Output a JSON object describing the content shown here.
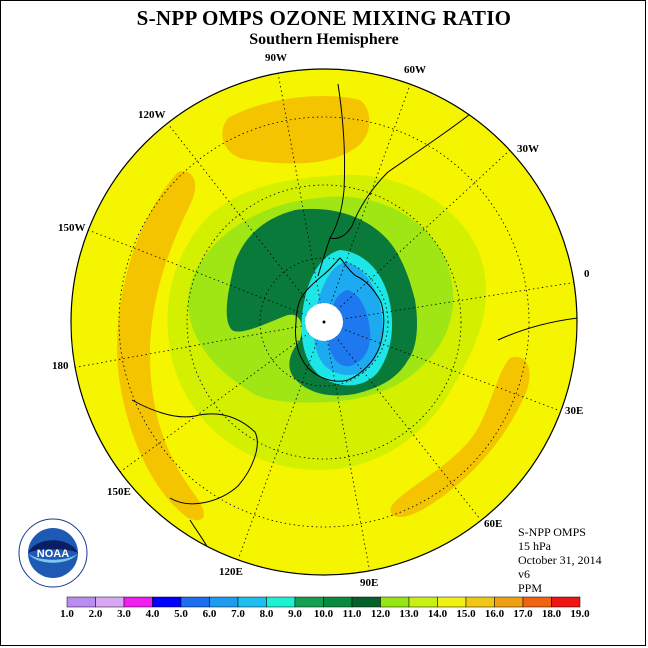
{
  "title": "S-NPP OMPS OZONE MIXING RATIO",
  "subtitle": "Southern Hemisphere",
  "info": {
    "instrument": "S-NPP OMPS",
    "level": "15 hPa",
    "date": "October 31, 2014",
    "version": "v6",
    "units": "PPM"
  },
  "logo": {
    "text": "NOAA",
    "icon": "noaa-logo"
  },
  "longitude_labels": [
    "90W",
    "60W",
    "30W",
    "0",
    "30E",
    "60E",
    "90E",
    "120E",
    "150E",
    "180",
    "150W",
    "120W"
  ],
  "colorbar": {
    "values": [
      "1.0",
      "2.0",
      "3.0",
      "4.0",
      "5.0",
      "6.0",
      "7.0",
      "8.0",
      "9.0",
      "10.0",
      "11.0",
      "12.0",
      "13.0",
      "14.0",
      "15.0",
      "16.0",
      "17.0",
      "18.0",
      "19.0"
    ],
    "colors": [
      "#b98cf2",
      "#d9a8f2",
      "#f01ef0",
      "#0000ff",
      "#1e6ef0",
      "#1e9cf0",
      "#1ebef0",
      "#1ef0d2",
      "#14a050",
      "#0a8a3c",
      "#06602a",
      "#96e614",
      "#c8f014",
      "#f0f014",
      "#f0c814",
      "#f0a014",
      "#f06414",
      "#f01414",
      "#8c5a3c"
    ]
  },
  "colors": {
    "background_field": "#f5f500",
    "orange_band": "#f5c400",
    "light_green": "#d2f000",
    "green": "#a0e614",
    "dark_green": "#0a7a3a",
    "deep_green": "#06602a",
    "cyan": "#1ee6e6",
    "light_blue": "#1eaaf0",
    "blue": "#1e78f0",
    "pole_hole": "#ffffff"
  }
}
